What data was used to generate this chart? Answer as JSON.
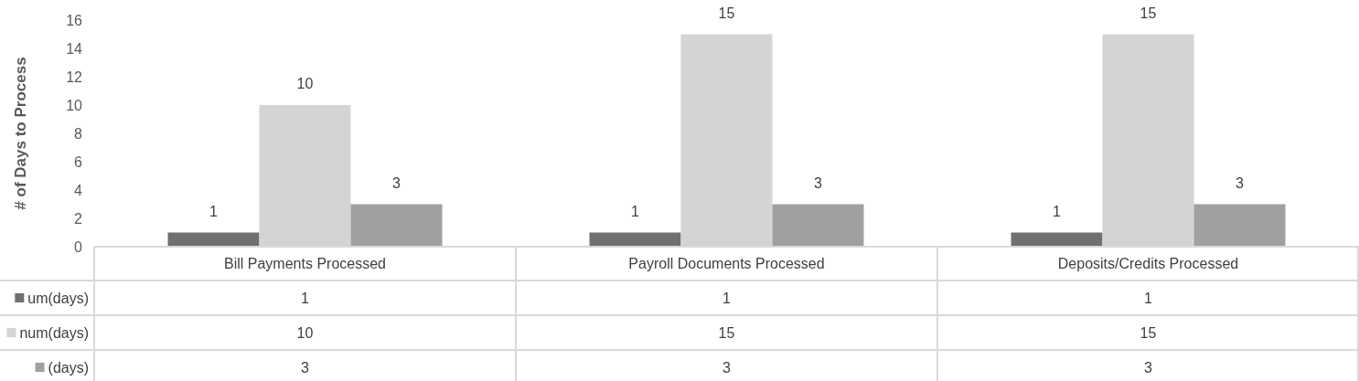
{
  "chart_data": {
    "type": "bar",
    "ylabel": "# of Days to Process",
    "categories": [
      "Bill Payments Processed",
      "Payroll Documents Processed",
      "Deposits/Credits Processed"
    ],
    "series": [
      {
        "name": "um(days)",
        "color": "#707070",
        "values": [
          1,
          1,
          1
        ],
        "value_labels": [
          "1",
          "1",
          "1"
        ]
      },
      {
        "name": "num(days)",
        "color": "#d4d4d4",
        "values": [
          10,
          15,
          15
        ],
        "value_labels": [
          "10",
          "15",
          "15"
        ]
      },
      {
        "name": "(days)",
        "color": "#a0a0a0",
        "values": [
          3,
          3,
          3
        ],
        "value_labels": [
          "3",
          "3",
          "3"
        ]
      }
    ],
    "annotations": [
      "1",
      "1",
      "1",
      "10",
      "15",
      "15",
      "3",
      "3",
      "3"
    ],
    "ylim": [
      0,
      16
    ],
    "yticks": [
      0,
      2,
      4,
      6,
      8,
      10,
      12,
      14,
      16
    ],
    "grid": false,
    "legend": "bottom left"
  }
}
